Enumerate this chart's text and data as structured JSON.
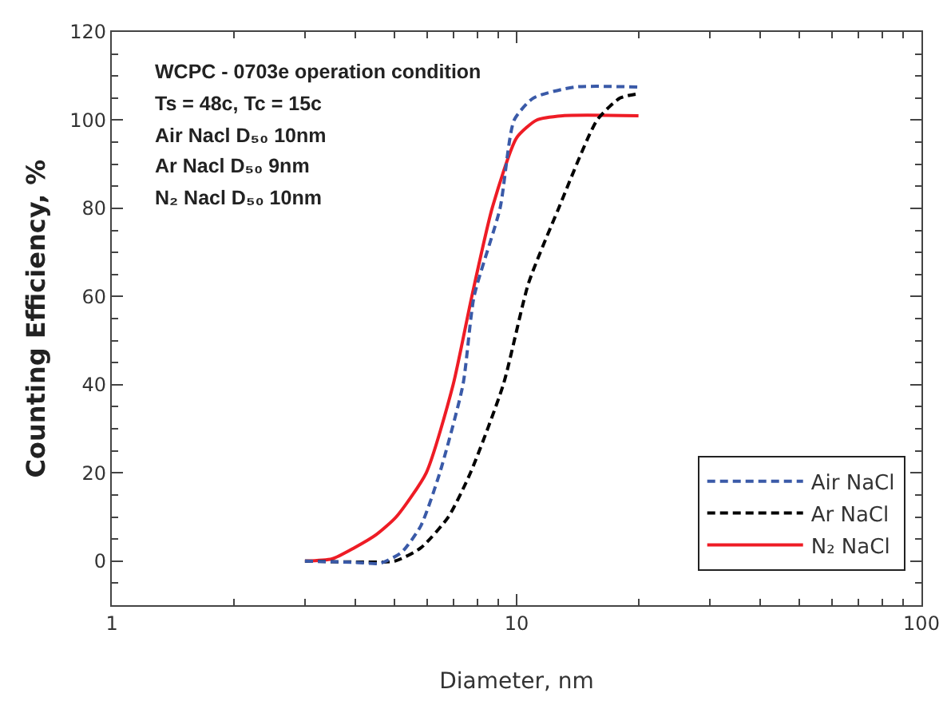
{
  "chart_data": {
    "type": "line",
    "xlabel": "Diameter, nm",
    "ylabel": "Counting Efficiency, %",
    "log": "x",
    "xlim": [
      1,
      100
    ],
    "xticks": [
      1,
      10,
      100
    ],
    "ylim": [
      -10,
      120
    ],
    "yticks": [
      0,
      20,
      40,
      60,
      80,
      100,
      120
    ],
    "grid": false,
    "legend": "bottom right",
    "marker": "none",
    "annotations": [
      "WCPC - 0703e operation condition",
      "Ts = 48c, Tc = 15c",
      "Air Nacl D₅₀ 10nm",
      "Ar Nacl D₅₀ 9nm",
      "N₂ Nacl D₅₀ 10nm"
    ],
    "series": [
      {
        "name": "Air NaCl",
        "color": "#3a5aa8",
        "line_style": "dashed",
        "x": [
          3,
          4,
          4.6,
          5.2,
          5.8,
          6.46,
          7.37,
          7.85,
          9.1,
          9.86,
          11,
          13.9,
          20
        ],
        "values": [
          0,
          -0.3,
          -0.5,
          2,
          8,
          20,
          40,
          60,
          80,
          100,
          105,
          107.5,
          107.5
        ]
      },
      {
        "name": "Ar NaCl",
        "color": "#000000",
        "line_style": "dashed",
        "x": [
          3,
          4,
          5,
          5.8,
          6.78,
          7.69,
          9.27,
          10.7,
          12.7,
          15.8,
          18,
          20
        ],
        "values": [
          0,
          -0.2,
          0,
          3,
          10,
          20,
          40,
          63,
          80,
          100,
          105,
          106
        ]
      },
      {
        "name": "N₂ NaCl",
        "color": "#ee1c25",
        "line_style": "solid",
        "x": [
          3,
          3.5,
          3.97,
          4.5,
          5.04,
          5.98,
          6.97,
          7.75,
          8.7,
          10,
          11.2,
          13,
          20
        ],
        "values": [
          0,
          0.5,
          3,
          6,
          10,
          20,
          40,
          60,
          80,
          96,
          100,
          101,
          101
        ]
      }
    ]
  }
}
